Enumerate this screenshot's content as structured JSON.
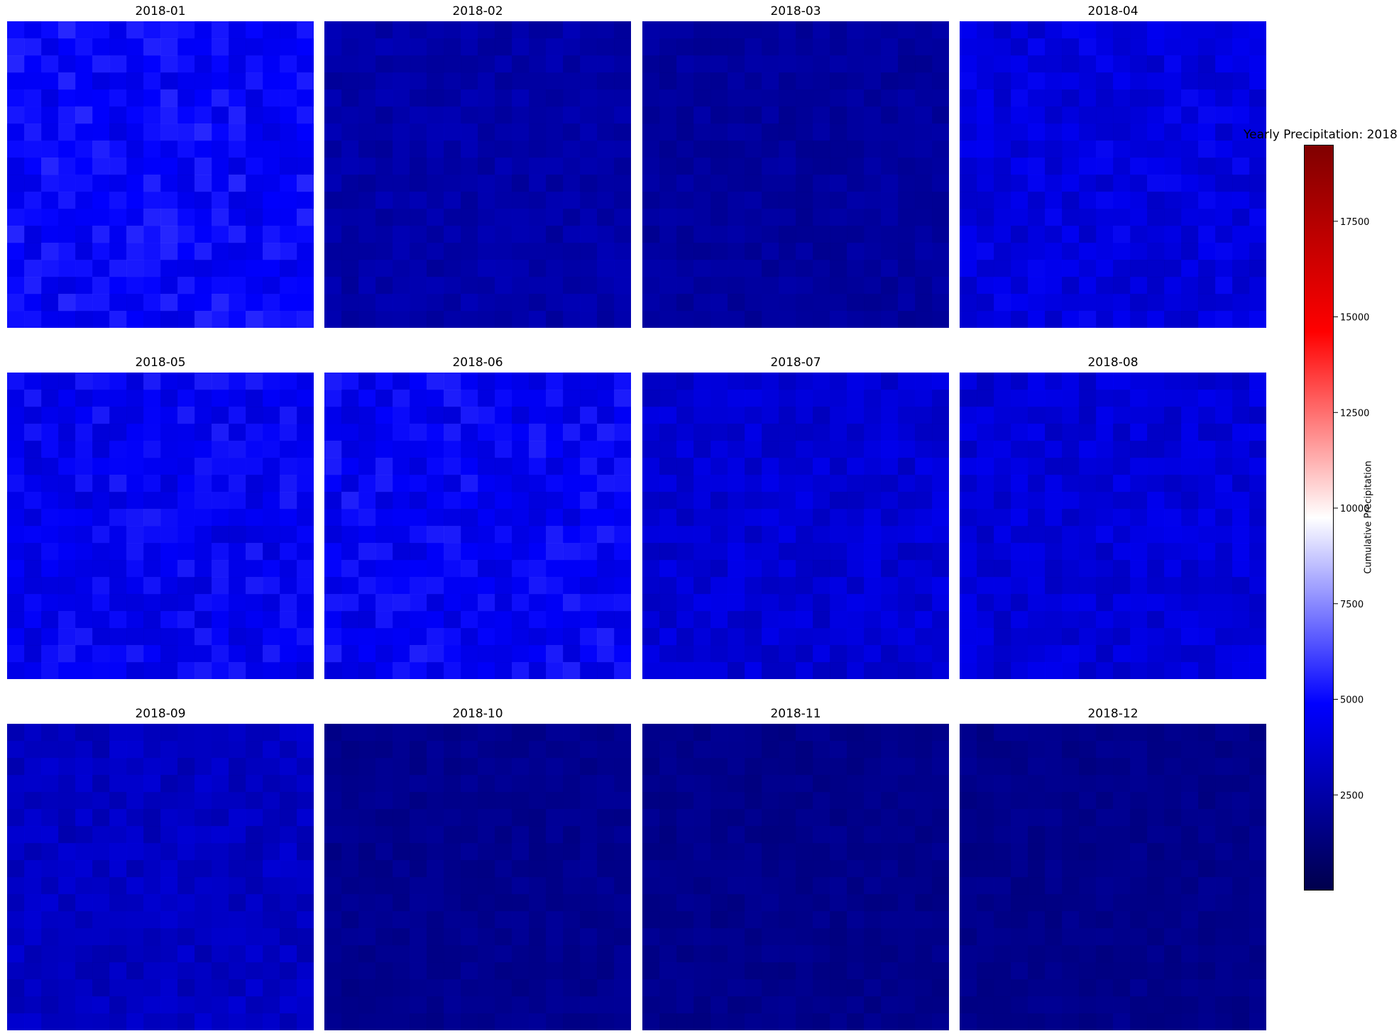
{
  "chart_data": {
    "type": "heatmap",
    "title": "Yearly Precipitation: 2018",
    "panels": [
      {
        "title": "2018-01",
        "base_level": 4800
      },
      {
        "title": "2018-02",
        "base_level": 2500
      },
      {
        "title": "2018-03",
        "base_level": 2200
      },
      {
        "title": "2018-04",
        "base_level": 4000
      },
      {
        "title": "2018-05",
        "base_level": 4500
      },
      {
        "title": "2018-06",
        "base_level": 4600
      },
      {
        "title": "2018-07",
        "base_level": 3700
      },
      {
        "title": "2018-08",
        "base_level": 3800
      },
      {
        "title": "2018-09",
        "base_level": 3200
      },
      {
        "title": "2018-10",
        "base_level": 1800
      },
      {
        "title": "2018-11",
        "base_level": 1700
      },
      {
        "title": "2018-12",
        "base_level": 1700
      }
    ],
    "colorbar": {
      "label": "Cumulative Precipitation",
      "range": [
        0,
        19500
      ],
      "ticks": [
        2500,
        5000,
        7500,
        10000,
        12500,
        15000,
        17500
      ],
      "tick_labels": [
        "2500",
        "5000",
        "7500",
        "10000",
        "12500",
        "15000",
        "17500"
      ],
      "colormap": "seismic",
      "colors": [
        "#00004c",
        "#0000ff",
        "#ffffff",
        "#ff0000",
        "#800000"
      ]
    },
    "grid": false
  }
}
